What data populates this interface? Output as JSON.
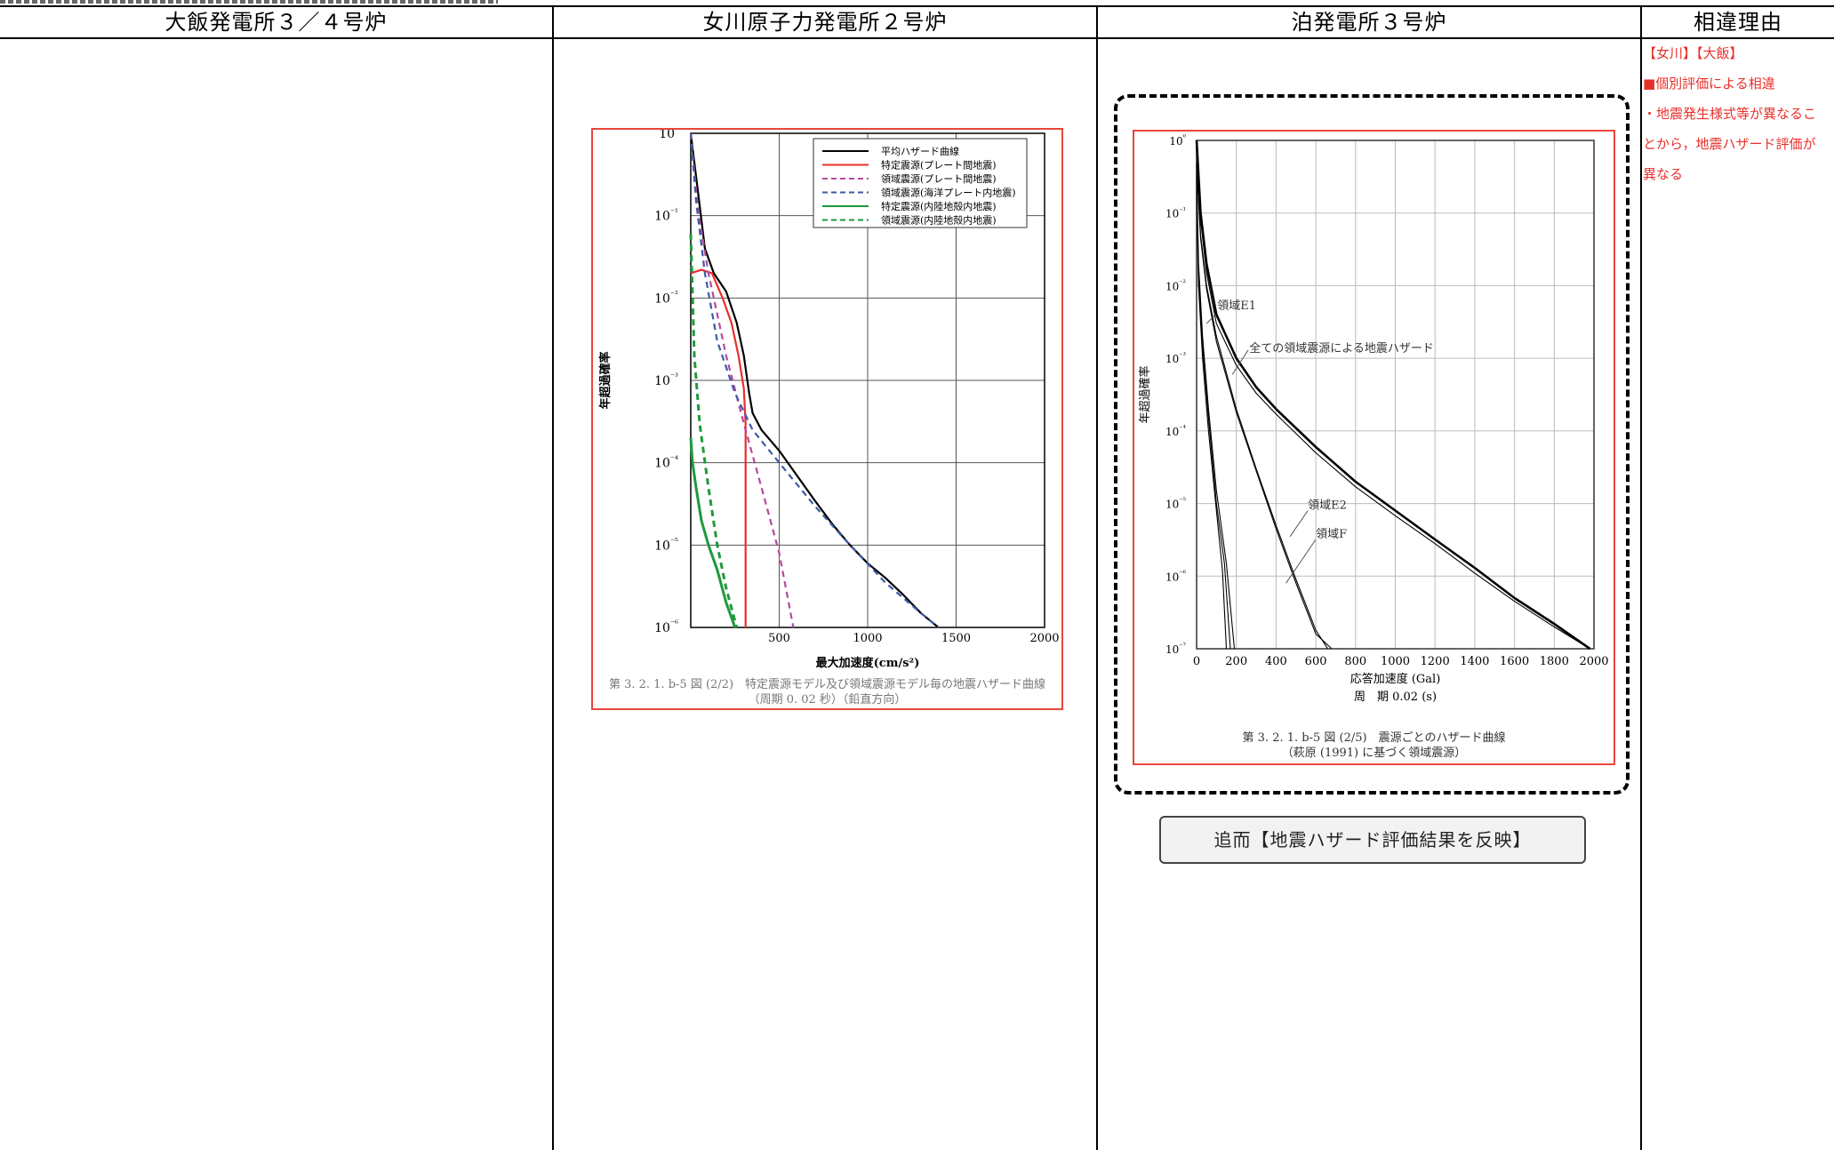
{
  "table": {
    "columns": [
      "大飯発電所３／４号炉",
      "女川原子力発電所２号炉",
      "泊発電所３号炉",
      "相違理由"
    ]
  },
  "onagawa_chart": {
    "caption_line1": "第 3. 2. 1. b-5 図 (2/2)　特定震源モデル及び領域震源モデル毎の地震ハザード曲線",
    "caption_line2": "（周期 0. 02 秒）（鉛直方向）",
    "colors": {
      "frame": "#e8463c",
      "black": "#000000",
      "red": "#e8302a",
      "magenta": "#b8489c",
      "blue": "#3c5aa8",
      "green": "#1e9a3c"
    },
    "chart_data": {
      "type": "line",
      "xlabel": "最大加速度(cm/s²)",
      "ylabel": "年超過確率",
      "xlim": [
        0,
        2000
      ],
      "ylim": [
        1e-06,
        1
      ],
      "yscale": "log",
      "x_ticks": [
        "500",
        "1000",
        "1500",
        "2000"
      ],
      "y_ticks": [
        "10⁰",
        "10⁻¹",
        "10⁻²",
        "10⁻³",
        "10⁻⁴",
        "10⁻⁵",
        "10⁻⁶"
      ],
      "grid": true,
      "legend_position": "top-right",
      "series": [
        {
          "name": "平均ハザード曲線",
          "style": "solid",
          "color": "#000000",
          "x": [
            0,
            40,
            80,
            130,
            200,
            260,
            300,
            330,
            350,
            400,
            500,
            600,
            700,
            800,
            900,
            1000,
            1100,
            1200,
            1300,
            1400
          ],
          "y": [
            1,
            0.2,
            0.04,
            0.02,
            0.012,
            0.005,
            0.002,
            0.0007,
            0.0004,
            0.00025,
            0.00014,
            7e-05,
            3.5e-05,
            1.8e-05,
            1e-05,
            6e-06,
            4e-06,
            2.5e-06,
            1.5e-06,
            1e-06
          ]
        },
        {
          "name": "特定震源(プレート間地震)",
          "style": "solid",
          "color": "#e8302a",
          "x": [
            0,
            60,
            120,
            180,
            230,
            270,
            300,
            310,
            310
          ],
          "y": [
            0.02,
            0.022,
            0.02,
            0.01,
            0.005,
            0.002,
            0.0008,
            0.0003,
            1e-06
          ]
        },
        {
          "name": "領域震源(プレート間地震)",
          "style": "dashed",
          "color": "#b8489c",
          "x": [
            0,
            40,
            100,
            200,
            300,
            400,
            500,
            580
          ],
          "y": [
            1,
            0.12,
            0.02,
            0.002,
            0.0003,
            5e-05,
            8e-06,
            1e-06
          ]
        },
        {
          "name": "領域震源(海洋プレート内地震)",
          "style": "dashed",
          "color": "#3c5aa8",
          "x": [
            0,
            30,
            80,
            150,
            250,
            350,
            500,
            700,
            900,
            1100,
            1300,
            1400
          ],
          "y": [
            1,
            0.15,
            0.02,
            0.003,
            0.0007,
            0.00025,
            0.0001,
            3e-05,
            1e-05,
            3.5e-06,
            1.5e-06,
            1e-06
          ]
        },
        {
          "name": "特定震源(内陸地殻内地震)",
          "style": "solid",
          "color": "#1e9a3c",
          "x": [
            0,
            10,
            30,
            60,
            100,
            150,
            200,
            250
          ],
          "y": [
            0.0002,
            0.0001,
            5e-05,
            2e-05,
            1e-05,
            5e-06,
            2e-06,
            1e-06
          ]
        },
        {
          "name": "領域震源(内陸地殻内地震)",
          "style": "dashed",
          "color": "#1e9a3c",
          "x": [
            0,
            20,
            50,
            100,
            150,
            200,
            260
          ],
          "y": [
            0.06,
            0.002,
            0.0003,
            5e-05,
            1e-05,
            3e-06,
            1e-06
          ]
        }
      ]
    }
  },
  "tomari_chart": {
    "caption_line1": "第 3. 2. 1. b-5 図 (2/5)　震源ごとのハザード曲線",
    "caption_line2": "（萩原 (1991) に基づく領域震源）",
    "period_label": "周　期 0.02 (s)",
    "annotations": [
      "領域E1",
      "全ての領域震源による地震ハザード",
      "領域E2",
      "領域F"
    ],
    "chart_data": {
      "type": "line",
      "xlabel": "応答加速度 (Gal)",
      "ylabel": "年超過確率",
      "xlim": [
        0,
        2000
      ],
      "ylim": [
        1e-07,
        1
      ],
      "yscale": "log",
      "x_ticks": [
        "0",
        "200",
        "400",
        "600",
        "800",
        "1000",
        "1200",
        "1400",
        "1600",
        "1800",
        "2000"
      ],
      "y_ticks": [
        "10⁰",
        "10⁻¹",
        "10⁻²",
        "10⁻³",
        "10⁻⁴",
        "10⁻⁵",
        "10⁻⁶",
        "10⁻⁷"
      ],
      "grid": true,
      "series": [
        {
          "style": "bold",
          "x": [
            0,
            20,
            50,
            100,
            200,
            300,
            400,
            600,
            800,
            1000,
            1200,
            1400,
            1600,
            1800,
            1980
          ],
          "y": [
            1,
            0.1,
            0.02,
            0.004,
            0.001,
            0.0004,
            0.0002,
            6e-05,
            2e-05,
            8e-06,
            3.2e-06,
            1.3e-06,
            5e-07,
            2.2e-07,
            1e-07
          ]
        },
        {
          "style": "thin",
          "x": [
            0,
            20,
            50,
            100,
            200,
            300,
            400,
            600,
            800,
            1000,
            1200,
            1400,
            1600,
            1800,
            1980
          ],
          "y": [
            0.9,
            0.08,
            0.015,
            0.003,
            0.0008,
            0.00033,
            0.00017,
            5e-05,
            1.7e-05,
            6.8e-06,
            2.8e-06,
            1.1e-06,
            4.5e-07,
            2e-07,
            1e-07
          ]
        },
        {
          "style": "thin",
          "x": [
            0,
            20,
            50,
            100,
            200,
            300,
            400,
            500,
            600,
            660
          ],
          "y": [
            0.5,
            0.05,
            0.01,
            0.002,
            0.0002,
            3e-05,
            5e-06,
            9e-07,
            1.8e-07,
            1e-07
          ]
        },
        {
          "style": "thin",
          "x": [
            0,
            20,
            50,
            100,
            200,
            300,
            400,
            500,
            600,
            680
          ],
          "y": [
            0.45,
            0.045,
            0.009,
            0.0017,
            0.00018,
            2.8e-05,
            4.5e-06,
            8e-07,
            1.6e-07,
            1e-07
          ]
        },
        {
          "style": "thin",
          "x": [
            0,
            10,
            30,
            60,
            100,
            130,
            150
          ],
          "y": [
            0.2,
            0.01,
            0.001,
            0.0001,
            8e-06,
            1.2e-06,
            1e-07
          ]
        },
        {
          "style": "thin",
          "x": [
            0,
            10,
            30,
            60,
            100,
            140,
            170
          ],
          "y": [
            0.3,
            0.015,
            0.0015,
            0.00015,
            1e-05,
            1.5e-06,
            1e-07
          ]
        },
        {
          "style": "thin",
          "x": [
            0,
            10,
            30,
            60,
            100,
            150,
            190
          ],
          "y": [
            0.35,
            0.02,
            0.002,
            0.0002,
            1.5e-05,
            1.5e-06,
            1e-07
          ]
        }
      ]
    }
  },
  "tomari_button": {
    "label": "追而【地震ハザード評価結果を反映】"
  },
  "reason": {
    "lines": [
      "【女川】【大飯】",
      "■個別評価による相違",
      "・地震発生様式等が異なるこ",
      "とから，地震ハザード評価が",
      "異なる"
    ]
  }
}
